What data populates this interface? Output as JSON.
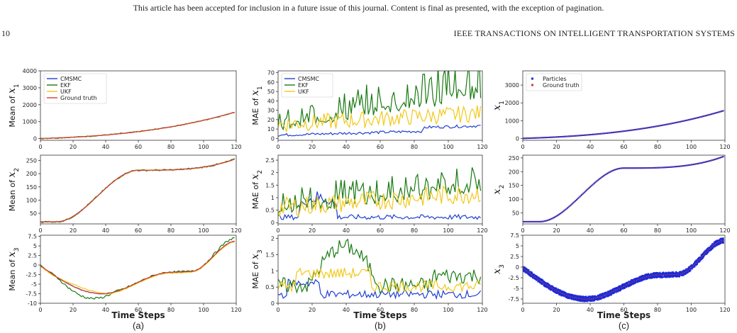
{
  "page": {
    "banner": "This article has been accepted for inclusion in a future issue of this journal. Content is final as presented, with the exception of pagination.",
    "page_number": "10",
    "journal_title": "IEEE TRANSACTIONS ON INTELLIGENT TRANSPORTATION SYSTEMS"
  },
  "figure": {
    "x_axis_label": "Time Steps",
    "columns": [
      {
        "caption": "(a)",
        "ylabel_prefix": "Mean of "
      },
      {
        "caption": "(b)",
        "ylabel_prefix": "MAE of "
      },
      {
        "caption": "(c)",
        "ylabel_prefix": ""
      }
    ],
    "row_symbols": [
      "x",
      "x",
      "x"
    ],
    "row_subscripts": [
      "1",
      "2",
      "3"
    ],
    "colors": {
      "CMSMC": "#1f3fd1",
      "EKF": "#1a7a12",
      "UKF": "#f2c81a",
      "Ground truth": "#d43a3a",
      "Particles": "#1d2bd6"
    }
  },
  "chart_data": [
    {
      "panel": "a1",
      "type": "line",
      "xlim": [
        0,
        120
      ],
      "ylim": [
        -100,
        4000
      ],
      "x_ticks": [
        0,
        20,
        40,
        60,
        80,
        100,
        120
      ],
      "y_ticks": [
        0,
        1000,
        2000,
        3000,
        4000
      ],
      "legend": [
        "CMSMC",
        "EKF",
        "UKF",
        "Ground truth"
      ],
      "legend_position": "top-left",
      "series": [
        {
          "name": "CMSMC",
          "shape": "x1",
          "noise": 10
        },
        {
          "name": "EKF",
          "shape": "x1",
          "noise": 30
        },
        {
          "name": "UKF",
          "shape": "x1",
          "noise": 15
        },
        {
          "name": "Ground truth",
          "shape": "x1",
          "noise": 0
        }
      ]
    },
    {
      "panel": "b1",
      "type": "line",
      "xlim": [
        0,
        120
      ],
      "ylim": [
        -2,
        72
      ],
      "x_ticks": [
        0,
        20,
        40,
        60,
        80,
        100,
        120
      ],
      "y_ticks": [
        0,
        10,
        20,
        30,
        40,
        50,
        60,
        70
      ],
      "legend": [
        "CMSMC",
        "EKF",
        "UKF"
      ],
      "legend_position": "top-left",
      "series": [
        {
          "name": "CMSMC",
          "shape": "mae1_cmsmc"
        },
        {
          "name": "EKF",
          "shape": "mae1_ekf"
        },
        {
          "name": "UKF",
          "shape": "mae1_ukf"
        }
      ]
    },
    {
      "panel": "c1",
      "type": "scatter",
      "xlim": [
        0,
        120
      ],
      "ylim": [
        -100,
        3800
      ],
      "x_ticks": [
        0,
        20,
        40,
        60,
        80,
        100,
        120
      ],
      "y_ticks": [
        0,
        1000,
        2000,
        3000
      ],
      "legend": [
        "Particles",
        "Ground truth"
      ],
      "legend_position": "top-left",
      "series": [
        {
          "name": "Particles",
          "shape": "x1"
        },
        {
          "name": "Ground truth",
          "shape": "x1"
        }
      ]
    },
    {
      "panel": "a2",
      "type": "line",
      "xlim": [
        0,
        120
      ],
      "ylim": [
        10,
        270
      ],
      "x_ticks": [
        0,
        20,
        40,
        60,
        80,
        100,
        120
      ],
      "y_ticks": [
        50,
        100,
        150,
        200,
        250
      ],
      "series": [
        {
          "name": "CMSMC",
          "shape": "x2",
          "noise": 1
        },
        {
          "name": "EKF",
          "shape": "x2",
          "noise": 3
        },
        {
          "name": "UKF",
          "shape": "x2",
          "noise": 1.5
        },
        {
          "name": "Ground truth",
          "shape": "x2",
          "noise": 0
        }
      ]
    },
    {
      "panel": "b2",
      "type": "line",
      "xlim": [
        0,
        120
      ],
      "ylim": [
        -0.05,
        2.7
      ],
      "x_ticks": [
        0,
        20,
        40,
        60,
        80,
        100,
        120
      ],
      "y_ticks": [
        0.0,
        0.5,
        1.0,
        1.5,
        2.0,
        2.5
      ],
      "series": [
        {
          "name": "CMSMC",
          "shape": "mae2_cmsmc"
        },
        {
          "name": "EKF",
          "shape": "mae2_ekf"
        },
        {
          "name": "UKF",
          "shape": "mae2_ukf"
        }
      ]
    },
    {
      "panel": "c2",
      "type": "scatter",
      "xlim": [
        0,
        120
      ],
      "ylim": [
        10,
        260
      ],
      "x_ticks": [
        0,
        20,
        40,
        60,
        80,
        100,
        120
      ],
      "y_ticks": [
        50,
        100,
        150,
        200,
        250
      ],
      "series": [
        {
          "name": "Particles",
          "shape": "x2"
        },
        {
          "name": "Ground truth",
          "shape": "x2"
        }
      ]
    },
    {
      "panel": "a3",
      "type": "line",
      "xlim": [
        0,
        120
      ],
      "ylim": [
        -10,
        7.8
      ],
      "x_ticks": [
        0,
        20,
        40,
        60,
        80,
        100,
        120
      ],
      "y_ticks": [
        -10.0,
        -7.5,
        -5.0,
        -2.5,
        0.0,
        2.5,
        5.0,
        7.5
      ],
      "series": [
        {
          "name": "CMSMC",
          "shape": "x3",
          "noise": 0.1
        },
        {
          "name": "EKF",
          "shape": "x3ekf",
          "noise": 0.3
        },
        {
          "name": "UKF",
          "shape": "x3ukf",
          "noise": 0.1
        },
        {
          "name": "Ground truth",
          "shape": "x3",
          "noise": 0
        }
      ]
    },
    {
      "panel": "b3",
      "type": "line",
      "xlim": [
        0,
        120
      ],
      "ylim": [
        0,
        2.1
      ],
      "x_ticks": [
        0,
        20,
        40,
        60,
        80,
        100,
        120
      ],
      "y_ticks": [
        0.0,
        0.5,
        1.0,
        1.5,
        2.0
      ],
      "series": [
        {
          "name": "CMSMC",
          "shape": "mae3_cmsmc"
        },
        {
          "name": "EKF",
          "shape": "mae3_ekf"
        },
        {
          "name": "UKF",
          "shape": "mae3_ukf"
        }
      ]
    },
    {
      "panel": "c3",
      "type": "scatter",
      "xlim": [
        0,
        120
      ],
      "ylim": [
        -8.5,
        7.5
      ],
      "x_ticks": [
        0,
        20,
        40,
        60,
        80,
        100,
        120
      ],
      "y_ticks": [
        -7.5,
        -5.0,
        -2.5,
        0.0,
        2.5,
        5.0,
        7.5
      ],
      "series": [
        {
          "name": "Particles",
          "shape": "x3",
          "spread": 0.6
        },
        {
          "name": "Ground truth",
          "shape": "x3"
        }
      ]
    }
  ]
}
